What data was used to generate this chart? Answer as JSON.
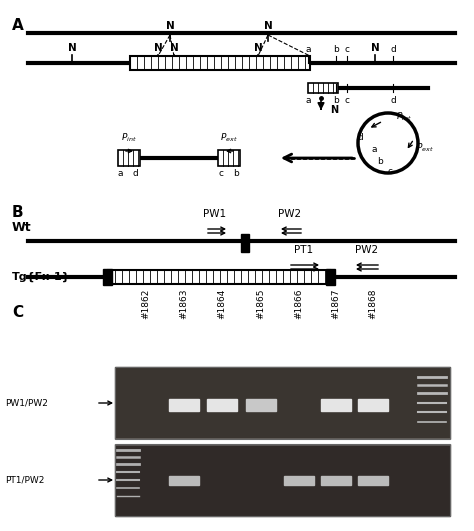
{
  "panel_A_label": "A",
  "panel_B_label": "B",
  "panel_C_label": "C",
  "wt_label": "Wt",
  "tg_label": "Tg{Fx-1}",
  "pw1_label": "PW1",
  "pw2_label": "PW2",
  "pt1_label": "PT1",
  "N_label": "N",
  "sample_labels": [
    "#1862",
    "#1863",
    "#1864",
    "#1865",
    "#1866",
    "#1867",
    "#1868"
  ],
  "gel_label1": "PW1/PW2",
  "gel_label2": "PT1/PW2",
  "bg_color": "#ffffff",
  "line_color": "#000000",
  "pw1pw2_bands": [
    2,
    3,
    4,
    6,
    7
  ],
  "pt1pw2_bands": [
    2,
    5,
    6,
    7
  ],
  "gel1_bg": "#3a3530",
  "gel2_bg": "#302a28"
}
